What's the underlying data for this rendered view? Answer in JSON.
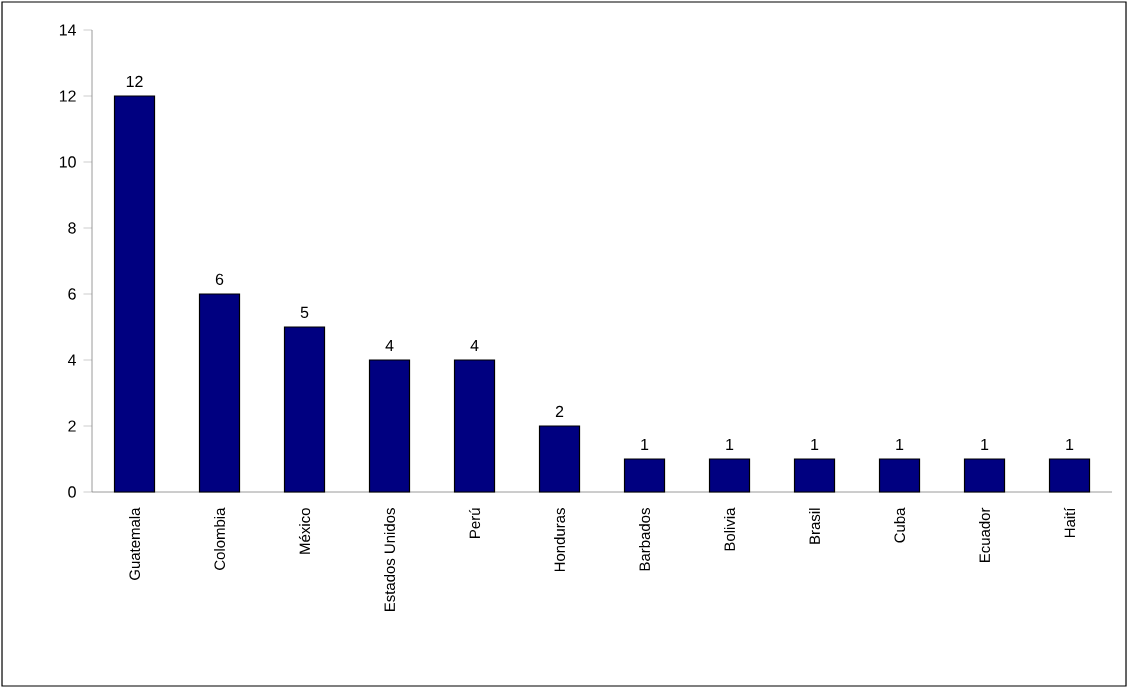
{
  "chart_data": {
    "type": "bar",
    "categories": [
      "Guatemala",
      "Colombia",
      "México",
      "Estados Unidos",
      "Perú",
      "Honduras",
      "Barbados",
      "Bolivia",
      "Brasil",
      "Cuba",
      "Ecuador",
      "Haití"
    ],
    "values": [
      12,
      6,
      5,
      4,
      4,
      2,
      1,
      1,
      1,
      1,
      1,
      1
    ],
    "color": "#000080",
    "ylim": [
      0,
      14
    ],
    "yticks": [
      0,
      2,
      4,
      6,
      8,
      10,
      12,
      14
    ],
    "data_labels": true
  }
}
